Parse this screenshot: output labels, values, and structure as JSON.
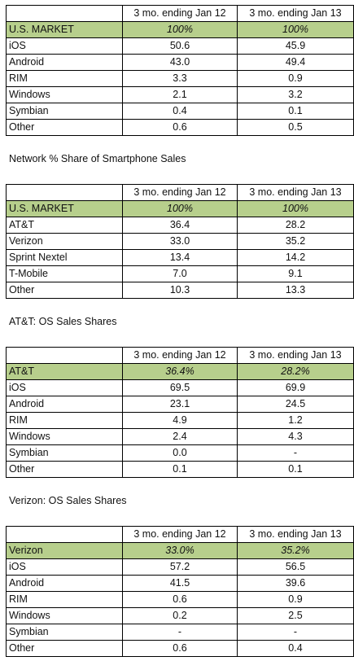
{
  "tables": [
    {
      "header": [
        "",
        "3 mo. ending Jan 12",
        "3 mo. ending Jan 13"
      ],
      "highlight": [
        "U.S. MARKET",
        "100%",
        "100%"
      ],
      "rows": [
        [
          "iOS",
          "50.6",
          "45.9"
        ],
        [
          "Android",
          "43.0",
          "49.4"
        ],
        [
          "RIM",
          "3.3",
          "0.9"
        ],
        [
          "Windows",
          "2.1",
          "3.2"
        ],
        [
          "Symbian",
          "0.4",
          "0.1"
        ],
        [
          "Other",
          "0.6",
          "0.5"
        ]
      ]
    },
    {
      "caption": "Network % Share of Smartphone Sales",
      "header": [
        "",
        "3 mo. ending Jan 12",
        "3 mo. ending Jan 13"
      ],
      "highlight": [
        "U.S. MARKET",
        "100%",
        "100%"
      ],
      "rows": [
        [
          "AT&T",
          "36.4",
          "28.2"
        ],
        [
          "Verizon",
          "33.0",
          "35.2"
        ],
        [
          "Sprint Nextel",
          "13.4",
          "14.2"
        ],
        [
          "T-Mobile",
          "7.0",
          "9.1"
        ],
        [
          "Other",
          "10.3",
          "13.3"
        ]
      ]
    },
    {
      "caption": "AT&T:  OS Sales Shares",
      "header": [
        "",
        "3 mo. ending Jan 12",
        "3 mo. ending Jan 13"
      ],
      "highlight": [
        "AT&T",
        "36.4%",
        "28.2%"
      ],
      "rows": [
        [
          "iOS",
          "69.5",
          "69.9"
        ],
        [
          "Android",
          "23.1",
          "24.5"
        ],
        [
          "RIM",
          "4.9",
          "1.2"
        ],
        [
          "Windows",
          "2.4",
          "4.3"
        ],
        [
          "Symbian",
          "0.0",
          "-"
        ],
        [
          "Other",
          "0.1",
          "0.1"
        ]
      ]
    },
    {
      "caption": "Verizon:  OS Sales Shares",
      "header": [
        "",
        "3 mo. ending Jan 12",
        "3 mo. ending Jan 13"
      ],
      "highlight": [
        "Verizon",
        "33.0%",
        "35.2%"
      ],
      "rows": [
        [
          "iOS",
          "57.2",
          "56.5"
        ],
        [
          "Android",
          "41.5",
          "39.6"
        ],
        [
          "RIM",
          "0.6",
          "0.9"
        ],
        [
          "Windows",
          "0.2",
          "2.5"
        ],
        [
          "Symbian",
          "-",
          "-"
        ],
        [
          "Other",
          "0.6",
          "0.4"
        ]
      ]
    }
  ]
}
